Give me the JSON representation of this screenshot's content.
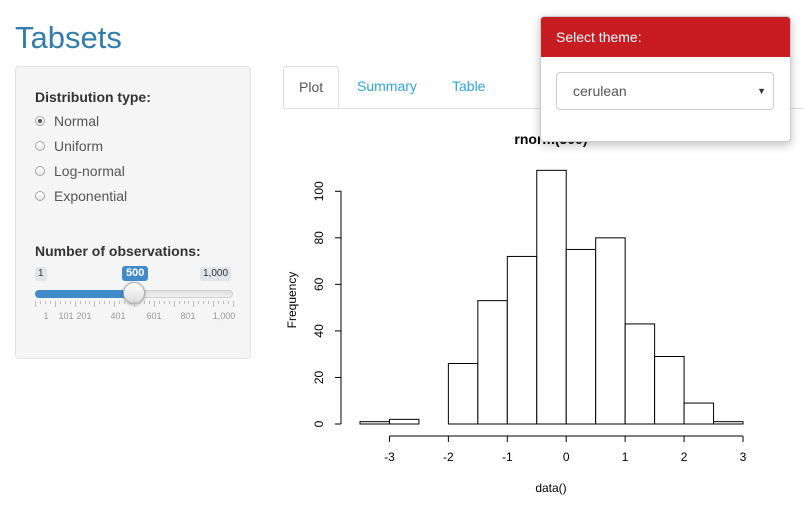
{
  "title": "Tabsets",
  "sidebar": {
    "dist_label": "Distribution type:",
    "dist_options": [
      "Normal",
      "Uniform",
      "Log-normal",
      "Exponential"
    ],
    "dist_selected": "Normal",
    "obs_label": "Number of observations:",
    "slider": {
      "min": "1",
      "max": "1,000",
      "value": "500",
      "value_fraction": 0.5,
      "tick_labels": [
        "1",
        "101",
        "201",
        "401",
        "601",
        "801",
        "1,000"
      ]
    }
  },
  "tabs": [
    {
      "label": "Plot",
      "active": true
    },
    {
      "label": "Summary",
      "active": false
    },
    {
      "label": "Table",
      "active": false
    }
  ],
  "theme": {
    "header": "Select theme:",
    "selected": "cerulean",
    "caret_icon": "caret-down-icon",
    "header_color": "#c71c22"
  },
  "chart_data": {
    "type": "histogram",
    "title": "rnorm(500)",
    "xlabel": "data()",
    "ylabel": "Frequency",
    "xlim": [
      -3.5,
      3
    ],
    "ylim": [
      0,
      110
    ],
    "xticks": [
      "-3",
      "-2",
      "-1",
      "0",
      "1",
      "2",
      "3"
    ],
    "yticks": [
      "0",
      "20",
      "40",
      "60",
      "80",
      "100"
    ],
    "bins": [
      {
        "x0": -3.5,
        "x1": -3.0,
        "count": 1
      },
      {
        "x0": -3.0,
        "x1": -2.5,
        "count": 2
      },
      {
        "x0": -2.5,
        "x1": -2.0,
        "count": 0
      },
      {
        "x0": -2.0,
        "x1": -1.5,
        "count": 26
      },
      {
        "x0": -1.5,
        "x1": -1.0,
        "count": 53
      },
      {
        "x0": -1.0,
        "x1": -0.5,
        "count": 72
      },
      {
        "x0": -0.5,
        "x1": 0.0,
        "count": 109
      },
      {
        "x0": 0.0,
        "x1": 0.5,
        "count": 75
      },
      {
        "x0": 0.5,
        "x1": 1.0,
        "count": 80
      },
      {
        "x0": 1.0,
        "x1": 1.5,
        "count": 43
      },
      {
        "x0": 1.5,
        "x1": 2.0,
        "count": 29
      },
      {
        "x0": 2.0,
        "x1": 2.5,
        "count": 9
      },
      {
        "x0": 2.5,
        "x1": 3.0,
        "count": 1
      }
    ]
  }
}
